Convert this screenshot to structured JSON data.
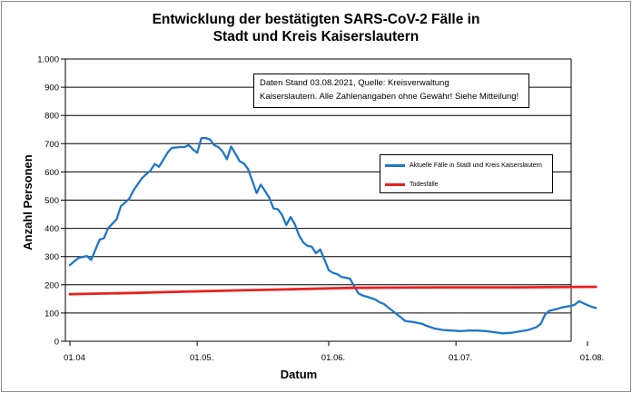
{
  "title_lines": [
    "Entwicklung der bestätigten SARS-CoV-2 Fälle in",
    "Stadt und Kreis Kaiserslautern"
  ],
  "info_box": [
    "Daten Stand 03.08.2021, Quelle: Kreisverwaltung",
    "Kaiserslautern. Alle Zahlenangaben ohne Gewähr! Siehe Mitteilung!"
  ],
  "colors": {
    "cases": "#1f77c9",
    "deaths": "#e8211e",
    "grid": "#000000"
  },
  "chart_data": {
    "type": "line",
    "xlabel": "Datum",
    "ylabel": "Anzahl Personen",
    "ylim": [
      0,
      1000
    ],
    "yticks": [
      0,
      100,
      200,
      300,
      400,
      500,
      600,
      700,
      800,
      900,
      1000
    ],
    "ytick_labels": [
      "0",
      "100",
      "200",
      "300",
      "400",
      "500",
      "600",
      "700",
      "800",
      "900",
      "1.000"
    ],
    "xlim": [
      "2021-04-01",
      "2021-08-03"
    ],
    "xticks": [
      {
        "date": "2021-04-01",
        "label": "01.04"
      },
      {
        "date": "2021-05-01",
        "label": "01.05."
      },
      {
        "date": "2021-06-01",
        "label": "01.06."
      },
      {
        "date": "2021-07-01",
        "label": "01.07."
      },
      {
        "date": "2021-08-01",
        "label": "01.08."
      }
    ],
    "grid": true,
    "legend_position": "right",
    "series": [
      {
        "name": "Aktuelle Fälle in Stadt und Kreis Kaiserslautern",
        "color": "#1f77c9",
        "points": [
          [
            "2021-04-01",
            270
          ],
          [
            "2021-04-03",
            295
          ],
          [
            "2021-04-05",
            302
          ],
          [
            "2021-04-06",
            288
          ],
          [
            "2021-04-08",
            360
          ],
          [
            "2021-04-09",
            365
          ],
          [
            "2021-04-10",
            400
          ],
          [
            "2021-04-12",
            432
          ],
          [
            "2021-04-13",
            478
          ],
          [
            "2021-04-15",
            505
          ],
          [
            "2021-04-16",
            535
          ],
          [
            "2021-04-18",
            578
          ],
          [
            "2021-04-20",
            605
          ],
          [
            "2021-04-21",
            628
          ],
          [
            "2021-04-22",
            618
          ],
          [
            "2021-04-24",
            668
          ],
          [
            "2021-04-25",
            685
          ],
          [
            "2021-04-27",
            688
          ],
          [
            "2021-04-28",
            688
          ],
          [
            "2021-04-29",
            695
          ],
          [
            "2021-04-30",
            680
          ],
          [
            "2021-05-01",
            668
          ],
          [
            "2021-05-02",
            720
          ],
          [
            "2021-05-03",
            720
          ],
          [
            "2021-05-04",
            715
          ],
          [
            "2021-05-05",
            695
          ],
          [
            "2021-05-06",
            688
          ],
          [
            "2021-05-07",
            672
          ],
          [
            "2021-05-08",
            645
          ],
          [
            "2021-05-09",
            690
          ],
          [
            "2021-05-10",
            665
          ],
          [
            "2021-05-11",
            638
          ],
          [
            "2021-05-12",
            630
          ],
          [
            "2021-05-13",
            610
          ],
          [
            "2021-05-14",
            568
          ],
          [
            "2021-05-15",
            525
          ],
          [
            "2021-05-16",
            555
          ],
          [
            "2021-05-17",
            532
          ],
          [
            "2021-05-18",
            508
          ],
          [
            "2021-05-19",
            470
          ],
          [
            "2021-05-20",
            468
          ],
          [
            "2021-05-21",
            448
          ],
          [
            "2021-05-22",
            412
          ],
          [
            "2021-05-23",
            440
          ],
          [
            "2021-05-24",
            415
          ],
          [
            "2021-05-25",
            375
          ],
          [
            "2021-05-26",
            350
          ],
          [
            "2021-05-27",
            338
          ],
          [
            "2021-05-28",
            335
          ],
          [
            "2021-05-29",
            312
          ],
          [
            "2021-05-30",
            325
          ],
          [
            "2021-05-31",
            290
          ],
          [
            "2021-06-01",
            252
          ],
          [
            "2021-06-02",
            242
          ],
          [
            "2021-06-03",
            238
          ],
          [
            "2021-06-04",
            228
          ],
          [
            "2021-06-05",
            225
          ],
          [
            "2021-06-06",
            222
          ],
          [
            "2021-06-07",
            195
          ],
          [
            "2021-06-08",
            170
          ],
          [
            "2021-06-09",
            162
          ],
          [
            "2021-06-10",
            158
          ],
          [
            "2021-06-12",
            148
          ],
          [
            "2021-06-13",
            138
          ],
          [
            "2021-06-14",
            132
          ],
          [
            "2021-06-16",
            108
          ],
          [
            "2021-06-18",
            85
          ],
          [
            "2021-06-19",
            72
          ],
          [
            "2021-06-21",
            68
          ],
          [
            "2021-06-23",
            62
          ],
          [
            "2021-06-24",
            55
          ],
          [
            "2021-06-26",
            45
          ],
          [
            "2021-06-28",
            40
          ],
          [
            "2021-06-30",
            38
          ],
          [
            "2021-07-02",
            36
          ],
          [
            "2021-07-04",
            38
          ],
          [
            "2021-07-06",
            38
          ],
          [
            "2021-07-08",
            36
          ],
          [
            "2021-07-10",
            32
          ],
          [
            "2021-07-12",
            28
          ],
          [
            "2021-07-14",
            30
          ],
          [
            "2021-07-16",
            35
          ],
          [
            "2021-07-18",
            40
          ],
          [
            "2021-07-20",
            50
          ],
          [
            "2021-07-21",
            62
          ],
          [
            "2021-07-22",
            95
          ],
          [
            "2021-07-23",
            108
          ],
          [
            "2021-07-25",
            115
          ],
          [
            "2021-07-26",
            120
          ],
          [
            "2021-07-28",
            125
          ],
          [
            "2021-07-29",
            130
          ],
          [
            "2021-07-30",
            142
          ],
          [
            "2021-07-31",
            135
          ],
          [
            "2021-08-01",
            128
          ],
          [
            "2021-08-02",
            122
          ],
          [
            "2021-08-03",
            118
          ]
        ]
      },
      {
        "name": "Todesfälle",
        "color": "#e8211e",
        "points": [
          [
            "2021-04-01",
            167
          ],
          [
            "2021-04-09",
            169
          ],
          [
            "2021-04-16",
            171
          ],
          [
            "2021-04-23",
            174
          ],
          [
            "2021-05-01",
            177
          ],
          [
            "2021-05-10",
            180
          ],
          [
            "2021-05-19",
            183
          ],
          [
            "2021-05-28",
            186
          ],
          [
            "2021-06-06",
            189
          ],
          [
            "2021-06-15",
            190
          ],
          [
            "2021-06-30",
            191
          ],
          [
            "2021-07-15",
            191
          ],
          [
            "2021-08-03",
            193
          ]
        ]
      }
    ]
  }
}
